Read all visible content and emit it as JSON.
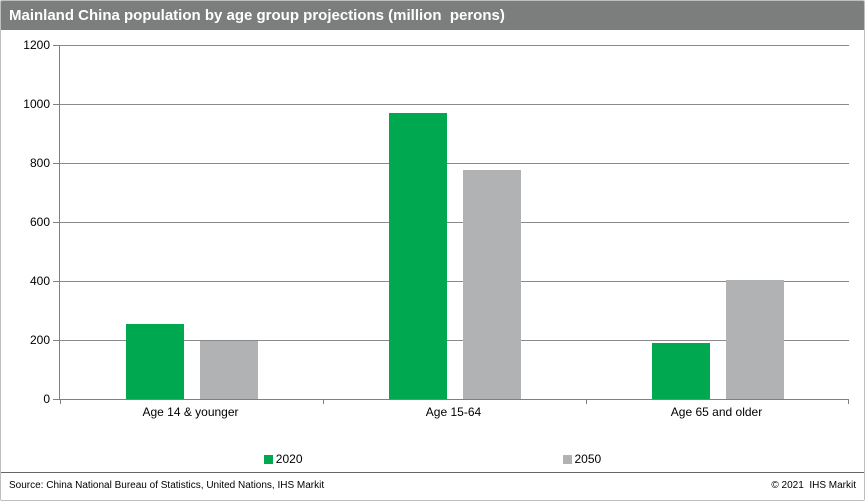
{
  "title": "Mainland China population by age group projections (million  perons)",
  "chart_data": {
    "type": "bar",
    "title": "Mainland China population by age group projections (million perons)",
    "categories": [
      "Age 14 & younger",
      "Age 15-64",
      "Age 65 and older"
    ],
    "series": [
      {
        "name": "2020",
        "color": "#00a84f",
        "values": [
          253,
          968,
          191
        ]
      },
      {
        "name": "2050",
        "color": "#b1b2b4",
        "values": [
          195,
          775,
          403
        ]
      }
    ],
    "xlabel": "",
    "ylabel": "",
    "ylim": [
      0,
      1200
    ],
    "yticks": [
      0,
      200,
      400,
      600,
      800,
      1000,
      1200
    ],
    "grid": true,
    "legend_position": "bottom"
  },
  "legend": [
    {
      "label": "2020",
      "color": "#00a84f"
    },
    {
      "label": "2050",
      "color": "#b1b2b4"
    }
  ],
  "footer": {
    "source": "Source: China National Bureau of Statistics, United Nations, IHS Markit",
    "copyright": "© 2021  IHS Markit"
  },
  "colors": {
    "header_bg": "#7c7e7d",
    "series_2020": "#00a84f",
    "series_2050": "#b1b2b4",
    "gridline": "#8a8a8a"
  }
}
